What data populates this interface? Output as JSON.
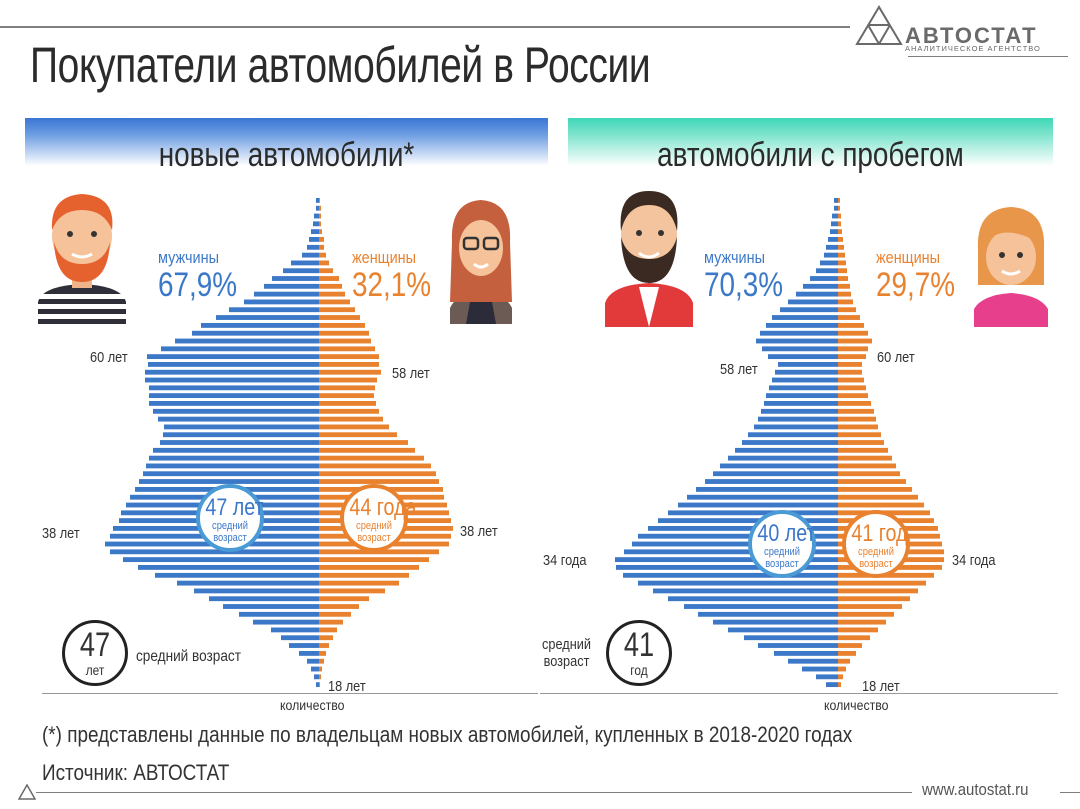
{
  "title": "Покупатели автомобилей в России",
  "logo": {
    "name": "АВТОСТАТ",
    "subtitle": "АНАЛИТИЧЕСКОЕ АГЕНТСТВО"
  },
  "colors": {
    "male": "#3c78c8",
    "female": "#e9822f",
    "new_header": "#3a76d3",
    "used_header": "#3fd7b8"
  },
  "footnote": "(*) представлены данные по владельцам новых автомобилей, купленных в 2018-2020 годах",
  "source": "Источник: АВТОСТАТ",
  "website": "www.autostat.ru",
  "panels": [
    {
      "header": "новые автомобили*",
      "male_label": "мужчины",
      "male_pct": "67,9%",
      "female_label": "женщины",
      "female_pct": "32,1%",
      "male_avg": {
        "value": "47 лет",
        "caption": "средний\nвозраст"
      },
      "female_avg": {
        "value": "44 года",
        "caption": "средний\nвозраст"
      },
      "overall_avg": {
        "number": "47",
        "unit": "лет",
        "caption": "средний возраст"
      },
      "age_labels": {
        "male_peak_top": "60 лет",
        "female_peak_top": "58 лет",
        "male_peak_bottom": "38 лет",
        "female_peak_bottom": "38 лет",
        "min_age": "18 лет"
      },
      "xlabel": "количество"
    },
    {
      "header": "автомобили с пробегом",
      "male_label": "мужчины",
      "male_pct": "70,3%",
      "female_label": "женщины",
      "female_pct": "29,7%",
      "male_avg": {
        "value": "40 лет",
        "caption": "средний\nвозраст"
      },
      "female_avg": {
        "value": "41 год",
        "caption": "средний\nвозраст"
      },
      "overall_avg": {
        "number": "41",
        "unit": "год",
        "caption": "средний\nвозраст"
      },
      "age_labels": {
        "male_peak_top": "58 лет",
        "female_peak_top": "60 лет",
        "male_peak_bottom": "34 года",
        "female_peak_bottom": "34 года",
        "min_age": "18 лет"
      },
      "xlabel": "количество"
    }
  ],
  "chart_data": [
    {
      "type": "bar",
      "orientation": "horizontal-pyramid",
      "ages_top_to_bottom": [
        80,
        79,
        78,
        77,
        76,
        75,
        74,
        73,
        72,
        71,
        70,
        69,
        68,
        67,
        66,
        65,
        64,
        63,
        62,
        61,
        60,
        59,
        58,
        57,
        56,
        55,
        54,
        53,
        52,
        51,
        50,
        49,
        48,
        47,
        46,
        45,
        44,
        43,
        42,
        41,
        40,
        39,
        38,
        37,
        36,
        35,
        34,
        33,
        32,
        31,
        30,
        29,
        28,
        27,
        26,
        25,
        24,
        23,
        22,
        21,
        20,
        19,
        18
      ],
      "series": [
        {
          "name": "мужчины",
          "values": [
            3,
            3,
            5,
            6,
            8,
            10,
            12,
            17,
            28,
            36,
            47,
            55,
            65,
            75,
            90,
            103,
            118,
            127,
            144,
            158,
            172,
            171,
            174,
            174,
            170,
            170,
            170,
            166,
            161,
            155,
            156,
            159,
            166,
            170,
            173,
            176,
            180,
            184,
            189,
            193,
            198,
            200,
            206,
            209,
            214,
            209,
            196,
            181,
            164,
            142,
            125,
            110,
            96,
            80,
            66,
            48,
            38,
            30,
            20,
            12,
            8,
            5,
            3
          ]
        },
        {
          "name": "женщины",
          "values": [
            1,
            2,
            2,
            2,
            3,
            5,
            5,
            7,
            10,
            14,
            20,
            23,
            26,
            31,
            36,
            41,
            46,
            50,
            52,
            56,
            60,
            60,
            62,
            58,
            56,
            55,
            57,
            60,
            64,
            70,
            78,
            89,
            96,
            105,
            112,
            117,
            120,
            124,
            125,
            128,
            130,
            132,
            134,
            132,
            130,
            120,
            110,
            100,
            90,
            80,
            66,
            50,
            40,
            32,
            24,
            18,
            14,
            10,
            7,
            5,
            3,
            2,
            1
          ]
        }
      ]
    },
    {
      "type": "bar",
      "orientation": "horizontal-pyramid",
      "ages_top_to_bottom": [
        80,
        79,
        78,
        77,
        76,
        75,
        74,
        73,
        72,
        71,
        70,
        69,
        68,
        67,
        66,
        65,
        64,
        63,
        62,
        61,
        60,
        59,
        58,
        57,
        56,
        55,
        54,
        53,
        52,
        51,
        50,
        49,
        48,
        47,
        46,
        45,
        44,
        43,
        42,
        41,
        40,
        39,
        38,
        37,
        36,
        35,
        34,
        33,
        32,
        31,
        30,
        29,
        28,
        27,
        26,
        25,
        24,
        23,
        22,
        21,
        20,
        19,
        18
      ],
      "series": [
        {
          "name": "мужчины",
          "values": [
            4,
            4,
            6,
            7,
            8,
            10,
            12,
            14,
            18,
            22,
            28,
            35,
            42,
            50,
            58,
            66,
            72,
            78,
            82,
            76,
            70,
            60,
            63,
            66,
            69,
            72,
            74,
            77,
            80,
            84,
            90,
            96,
            103,
            110,
            118,
            125,
            133,
            142,
            151,
            160,
            170,
            180,
            190,
            200,
            206,
            214,
            223,
            222,
            215,
            200,
            185,
            170,
            154,
            140,
            125,
            110,
            94,
            80,
            64,
            50,
            36,
            22,
            12
          ]
        },
        {
          "name": "женщины",
          "values": [
            2,
            2,
            3,
            3,
            4,
            5,
            6,
            7,
            8,
            9,
            10,
            12,
            13,
            15,
            18,
            22,
            26,
            30,
            34,
            30,
            28,
            24,
            24,
            26,
            28,
            30,
            33,
            36,
            38,
            40,
            43,
            46,
            50,
            54,
            58,
            62,
            68,
            74,
            80,
            86,
            92,
            96,
            100,
            102,
            104,
            106,
            106,
            104,
            96,
            88,
            80,
            72,
            64,
            56,
            48,
            40,
            32,
            24,
            18,
            12,
            8,
            5,
            3
          ]
        }
      ]
    }
  ]
}
